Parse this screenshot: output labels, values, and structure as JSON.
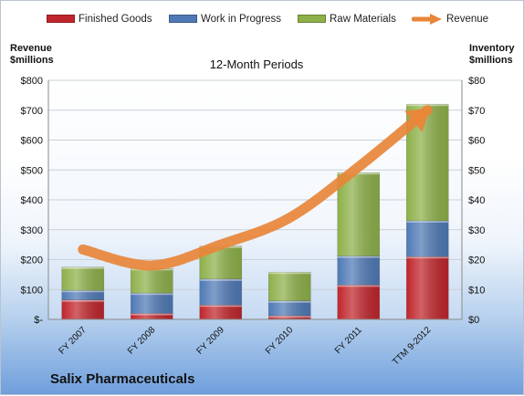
{
  "chart_data": {
    "type": "bar",
    "subtitle": "12-Month Periods",
    "footer_title": "Salix Pharmaceuticals",
    "categories": [
      "FY 2007",
      "FY 2008",
      "FY 2009",
      "FY 2010",
      "FY 2011",
      "TTM 9-2012"
    ],
    "y_left": {
      "label_line1": "Revenue",
      "label_line2": "$millions",
      "ylim": [
        0,
        800
      ],
      "ticks": [
        0,
        100,
        200,
        300,
        400,
        500,
        600,
        700,
        800
      ],
      "tick_labels": [
        "$-",
        "$100",
        "$200",
        "$300",
        "$400",
        "$500",
        "$600",
        "$700",
        "$800"
      ]
    },
    "y_right": {
      "label_line1": "Inventory",
      "label_line2": "$millions",
      "ylim": [
        0,
        80
      ],
      "ticks": [
        0,
        10,
        20,
        30,
        40,
        50,
        60,
        70,
        80
      ],
      "tick_labels": [
        "$0",
        "$10",
        "$20",
        "$30",
        "$40",
        "$50",
        "$60",
        "$70",
        "$80"
      ]
    },
    "series": [
      {
        "name": "Finished Goods",
        "axis": "right",
        "stack": "inventory",
        "color": "#c0252b",
        "values": [
          6.5,
          2.0,
          4.8,
          1.2,
          11.5,
          21.0
        ]
      },
      {
        "name": "Work in Progress",
        "axis": "right",
        "stack": "inventory",
        "color": "#4f79b5",
        "values": [
          3.2,
          6.8,
          8.7,
          5.0,
          9.7,
          12.0
        ]
      },
      {
        "name": "Raw Materials",
        "axis": "right",
        "stack": "inventory",
        "color": "#8db049",
        "values": [
          7.8,
          8.2,
          11.0,
          9.6,
          27.9,
          39.0
        ]
      },
      {
        "name": "Revenue",
        "axis": "left",
        "type": "line",
        "color": "#e8863a",
        "values": [
          234,
          180,
          250,
          340,
          510,
          700
        ]
      }
    ],
    "grid": true,
    "legend_position": "top"
  }
}
